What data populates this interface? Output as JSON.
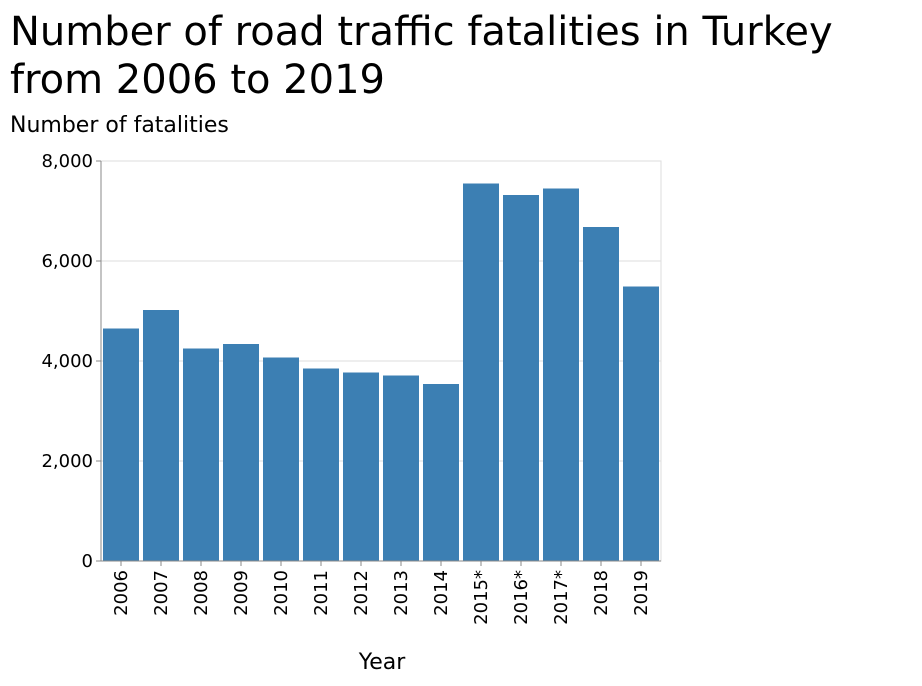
{
  "chart_data": {
    "type": "bar",
    "title": "Number of road traffic fatalities in Turkey from 2006 to 2019",
    "y_label": "Number of fatalities",
    "x_label": "Year",
    "categories": [
      "2006",
      "2007",
      "2008",
      "2009",
      "2010",
      "2011",
      "2012",
      "2013",
      "2014",
      "2015*",
      "2016*",
      "2017*",
      "2018",
      "2019"
    ],
    "values": [
      4650,
      5020,
      4250,
      4340,
      4070,
      3850,
      3770,
      3710,
      3540,
      7550,
      7320,
      7450,
      6680,
      5490
    ],
    "color": "#3c7fb3",
    "ylim": [
      0,
      8000
    ],
    "yticks": [
      0,
      {
        "value": 2000,
        "label": "2,000"
      },
      {
        "value": 4000,
        "label": "4,000"
      },
      {
        "value": 6000,
        "label": "6,000"
      },
      {
        "value": 8000,
        "label": "8,000"
      }
    ],
    "grid": true
  }
}
